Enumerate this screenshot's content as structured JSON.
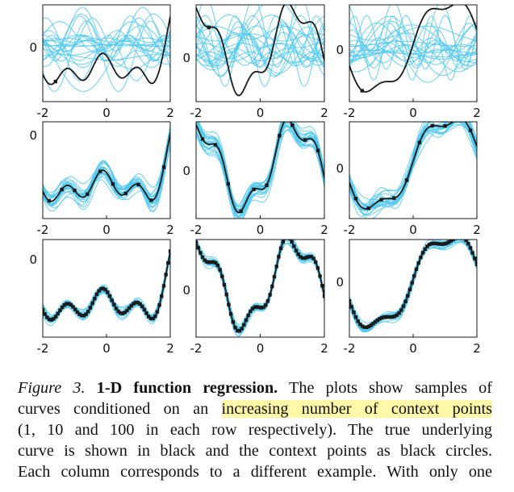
{
  "chart_data": [
    {
      "type": "line",
      "row": 1,
      "col": 1,
      "x_ticks": [
        "-2",
        "0",
        "2"
      ],
      "y_ticks": [
        "0"
      ],
      "xlim": [
        -2,
        2
      ],
      "context_points": 1,
      "true_function": "example-1",
      "sample_color": "#4fc8ef",
      "true_color": "#1a1a1a"
    },
    {
      "type": "line",
      "row": 1,
      "col": 2,
      "x_ticks": [
        "-2",
        "0",
        "2"
      ],
      "y_ticks": [
        "0"
      ],
      "xlim": [
        -2,
        2
      ],
      "context_points": 1,
      "true_function": "example-2",
      "sample_color": "#4fc8ef",
      "true_color": "#1a1a1a"
    },
    {
      "type": "line",
      "row": 1,
      "col": 3,
      "x_ticks": [
        "-2",
        "0",
        "2"
      ],
      "y_ticks": [
        "0"
      ],
      "xlim": [
        -2,
        2
      ],
      "context_points": 1,
      "true_function": "example-3",
      "sample_color": "#4fc8ef",
      "true_color": "#1a1a1a"
    },
    {
      "type": "line",
      "row": 2,
      "col": 1,
      "x_ticks": [
        "-2",
        "0",
        "2"
      ],
      "y_ticks": [
        "0"
      ],
      "xlim": [
        -2,
        2
      ],
      "context_points": 10,
      "true_function": "example-1",
      "sample_color": "#4fc8ef",
      "true_color": "#1a1a1a"
    },
    {
      "type": "line",
      "row": 2,
      "col": 2,
      "x_ticks": [
        "-2",
        "0",
        "2"
      ],
      "y_ticks": [
        "0"
      ],
      "xlim": [
        -2,
        2
      ],
      "context_points": 10,
      "true_function": "example-2",
      "sample_color": "#4fc8ef",
      "true_color": "#1a1a1a"
    },
    {
      "type": "line",
      "row": 2,
      "col": 3,
      "x_ticks": [
        "-2",
        "0",
        "2"
      ],
      "y_ticks": [
        "0"
      ],
      "xlim": [
        -2,
        2
      ],
      "context_points": 10,
      "true_function": "example-3",
      "sample_color": "#4fc8ef",
      "true_color": "#1a1a1a"
    },
    {
      "type": "line",
      "row": 3,
      "col": 1,
      "x_ticks": [
        "-2",
        "0",
        "2"
      ],
      "y_ticks": [
        "0"
      ],
      "xlim": [
        -2,
        2
      ],
      "context_points": 100,
      "true_function": "example-1",
      "sample_color": "#4fc8ef",
      "true_color": "#1a1a1a"
    },
    {
      "type": "line",
      "row": 3,
      "col": 2,
      "x_ticks": [
        "-2",
        "0",
        "2"
      ],
      "y_ticks": [
        "0"
      ],
      "xlim": [
        -2,
        2
      ],
      "context_points": 100,
      "true_function": "example-2",
      "sample_color": "#4fc8ef",
      "true_color": "#1a1a1a"
    },
    {
      "type": "line",
      "row": 3,
      "col": 3,
      "x_ticks": [
        "-2",
        "0",
        "2"
      ],
      "y_ticks": [
        "0"
      ],
      "xlim": [
        -2,
        2
      ],
      "context_points": 100,
      "true_function": "example-3",
      "sample_color": "#4fc8ef",
      "true_color": "#1a1a1a"
    }
  ],
  "caption": {
    "figure_label": "Figure 3.",
    "title": "1-D function regression.",
    "line1_rest": "The plots show samples of",
    "line2_pre": "curves conditioned on an",
    "line2_highlight": "increasing number of context points",
    "line3": "(1, 10 and 100 in each row respectively).  The true underlying",
    "line4": "curve is shown in black and the context points as black circles.",
    "line5": "Each column corresponds to a different example.  With only one"
  },
  "colors": {
    "samples": "#4fc8ef",
    "true_curve": "#1a1a1a",
    "highlight": "#fff7a8"
  }
}
